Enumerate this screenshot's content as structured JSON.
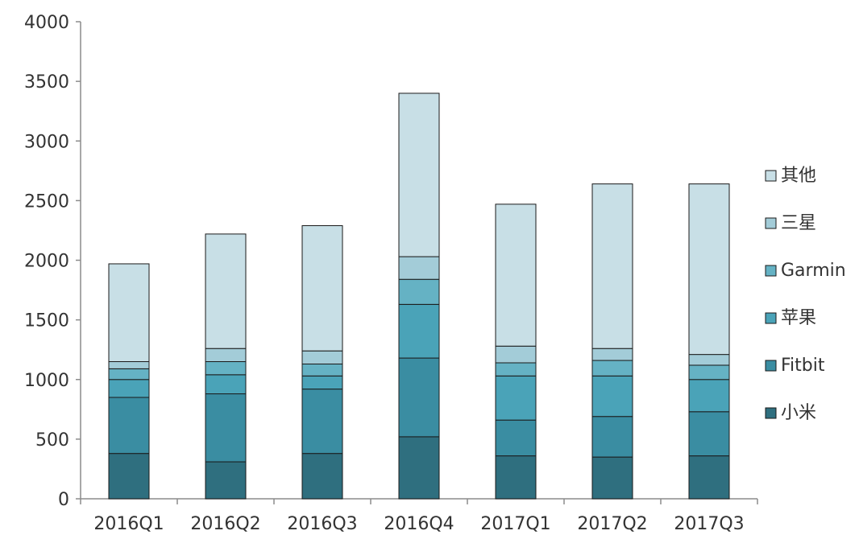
{
  "chart_data": {
    "type": "bar",
    "stacked": true,
    "categories": [
      "2016Q1",
      "2016Q2",
      "2016Q3",
      "2016Q4",
      "2017Q1",
      "2017Q2",
      "2017Q3"
    ],
    "series": [
      {
        "name": "小米",
        "color": "#2f6f7f",
        "values": [
          380,
          310,
          380,
          520,
          360,
          350,
          360
        ]
      },
      {
        "name": "Fitbit",
        "color": "#3a8da2",
        "values": [
          470,
          570,
          540,
          660,
          300,
          340,
          370
        ]
      },
      {
        "name": "苹果",
        "color": "#4aa3b8",
        "values": [
          150,
          160,
          110,
          450,
          370,
          340,
          270
        ]
      },
      {
        "name": "Garmin",
        "color": "#65b2c4",
        "values": [
          90,
          110,
          100,
          210,
          110,
          130,
          120
        ]
      },
      {
        "name": "三星",
        "color": "#a3ccd8",
        "values": [
          60,
          110,
          110,
          190,
          140,
          100,
          90
        ]
      },
      {
        "name": "其他",
        "color": "#c8dfe6",
        "values": [
          820,
          960,
          1050,
          1370,
          1190,
          1380,
          1430
        ]
      }
    ],
    "ylim": [
      0,
      4000
    ],
    "yticks": [
      "0",
      "500",
      "1000",
      "1500",
      "2000",
      "2500",
      "3000",
      "3500",
      "4000"
    ],
    "legend_position": "right",
    "grid": false
  }
}
